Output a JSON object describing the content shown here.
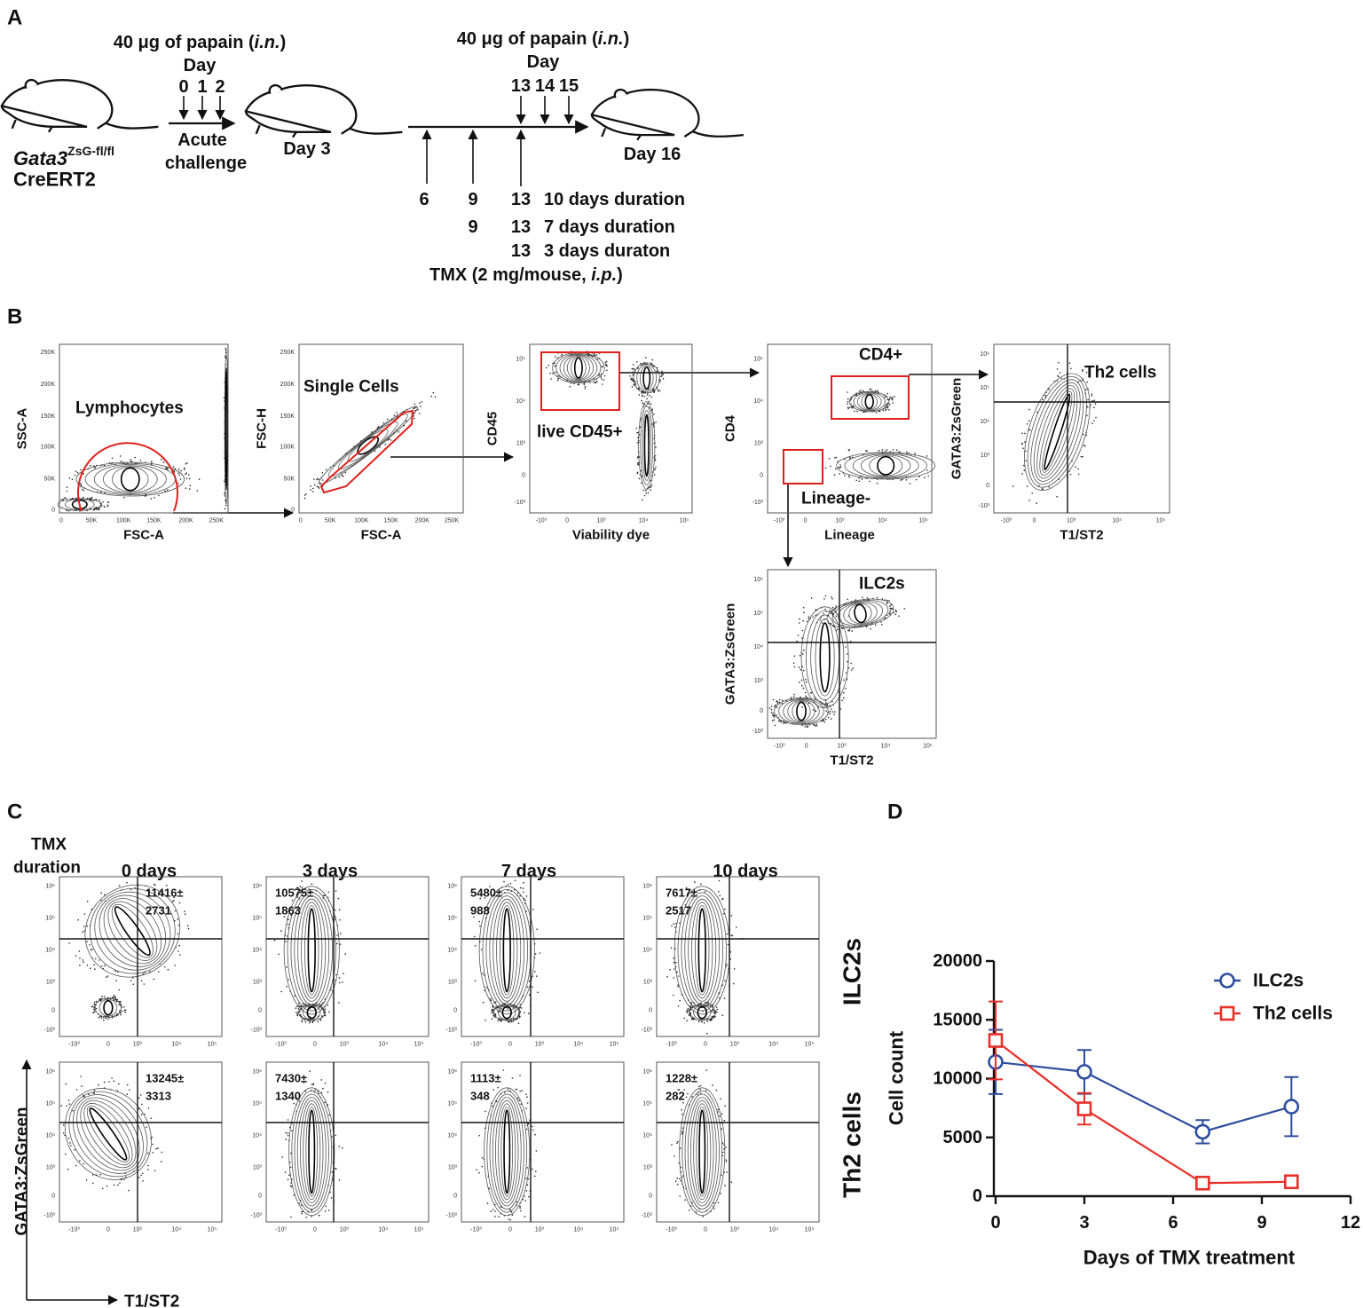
{
  "panel_labels": [
    "A",
    "B",
    "C",
    "D"
  ],
  "a": {
    "papain1": {
      "pre": "40 μg of papain (",
      "italic": "i.n.",
      "post": ")"
    },
    "day1": "Day",
    "days1": [
      "0",
      "1",
      "2"
    ],
    "strain": {
      "gene": "Gata3",
      "superscript": "ZsG-fl/fl",
      "line2": "CreERT2"
    },
    "challenge": [
      "Acute",
      "challenge"
    ],
    "day3": "Day 3",
    "papain2": {
      "pre": "40 μg of papain (",
      "italic": "i.n.",
      "post": ")"
    },
    "day2": "Day",
    "days2": [
      "13",
      "14",
      "15"
    ],
    "day16": "Day 16",
    "tmx_rows": [
      [
        "6",
        "9",
        "13",
        "10 days duration"
      ],
      [
        "9",
        "13",
        "7 days duration"
      ],
      [
        "13",
        "3 days duraton"
      ]
    ],
    "tmx": {
      "pre": "TMX (2 mg/mouse, ",
      "italic": "i.p.",
      "post": ")"
    }
  },
  "b": {
    "plots": [
      {
        "ylabel": "SSC-A",
        "xlabel": "FSC-A",
        "gate": "Lymphocytes",
        "xticks": [
          "0",
          "50K",
          "100K",
          "150K",
          "200K",
          "250K"
        ],
        "yticks": [
          "250K",
          "200K",
          "150K",
          "100K",
          "50K",
          "0"
        ]
      },
      {
        "ylabel": "FSC-H",
        "xlabel": "FSC-A",
        "gate": "Single Cells",
        "xticks": [
          "0",
          "50K",
          "100K",
          "150K",
          "200K",
          "250K"
        ],
        "yticks": [
          "250K",
          "200K",
          "150K",
          "100K",
          "50K",
          "0"
        ]
      },
      {
        "ylabel": "CD45",
        "xlabel": "Viability dye",
        "gate": "live CD45+",
        "xticks": [
          "-10³",
          "0",
          "10³",
          "10⁴",
          "10⁵"
        ],
        "yticks": [
          "10⁵",
          "10⁴",
          "10³",
          "0",
          "-10³"
        ]
      },
      {
        "ylabel": "CD4",
        "xlabel": "Lineage",
        "gate": "CD4+",
        "gate2": "Lineage-",
        "xticks": [
          "-10³",
          "0",
          "10³",
          "10⁴",
          "10⁵"
        ],
        "yticks": [
          "10⁵",
          "10⁴",
          "10³",
          "0",
          "-10³"
        ]
      },
      {
        "ylabel": "GATA3:ZsGreen",
        "xlabel": "T1/ST2",
        "gate": "Th2 cells",
        "xticks": [
          "-10³",
          "0",
          "10³",
          "10⁴",
          "10⁵"
        ],
        "yticks": [
          "10⁶",
          "10⁵",
          "10⁴",
          "10³",
          "0",
          "-10³"
        ]
      },
      {
        "ylabel": "GATA3:ZsGreen",
        "xlabel": "T1/ST2",
        "gate": "ILC2s",
        "xticks": [
          "-10³",
          "0",
          "10³",
          "10⁴",
          "10⁵"
        ],
        "yticks": [
          "10⁶",
          "10⁵",
          "10⁴",
          "10³",
          "0",
          "-10³"
        ]
      }
    ]
  },
  "c": {
    "tmx": [
      "TMX",
      "duration"
    ],
    "columns": [
      "0 days",
      "3 days",
      "7 days",
      "10 days"
    ],
    "rows": [
      "ILC2s",
      "Th2 cells"
    ],
    "counts": [
      [
        [
          "11416±",
          "2731"
        ],
        [
          "10575±",
          "1863"
        ],
        [
          "5480±",
          "988"
        ],
        [
          "7617±",
          "2517"
        ]
      ],
      [
        [
          "13245±",
          "3313"
        ],
        [
          "7430±",
          "1340"
        ],
        [
          "1113±",
          "348"
        ],
        [
          "1228±",
          "282"
        ]
      ]
    ],
    "xticks": [
      "-10³",
      "0",
      "10³",
      "10⁴",
      "10⁵"
    ],
    "yticks": [
      "10⁶",
      "10⁵",
      "10⁴",
      "10³",
      "0",
      "-10³"
    ],
    "ylabel": "GATA3:ZsGreen",
    "xlabel": "T1/ST2"
  },
  "chart_data": {
    "type": "line",
    "x": [
      0,
      3,
      7,
      10
    ],
    "xlim": [
      0,
      12
    ],
    "xticks": [
      0,
      3,
      6,
      9,
      12
    ],
    "ylim": [
      0,
      20000
    ],
    "yticks": [
      0,
      5000,
      10000,
      15000,
      20000
    ],
    "xlabel": "Days of TMX treatment",
    "ylabel": "Cell count",
    "legend": "top-right",
    "series": [
      {
        "name": "ILC2s",
        "color": "#2d4d9f",
        "marker": "circle",
        "values": [
          11416,
          10575,
          5480,
          7617
        ],
        "errors": [
          2731,
          1863,
          988,
          2517
        ]
      },
      {
        "name": "Th2 cells",
        "color": "#e8302a",
        "marker": "square",
        "values": [
          13245,
          7430,
          1113,
          1228
        ],
        "errors": [
          3313,
          1340,
          348,
          282
        ]
      }
    ]
  }
}
